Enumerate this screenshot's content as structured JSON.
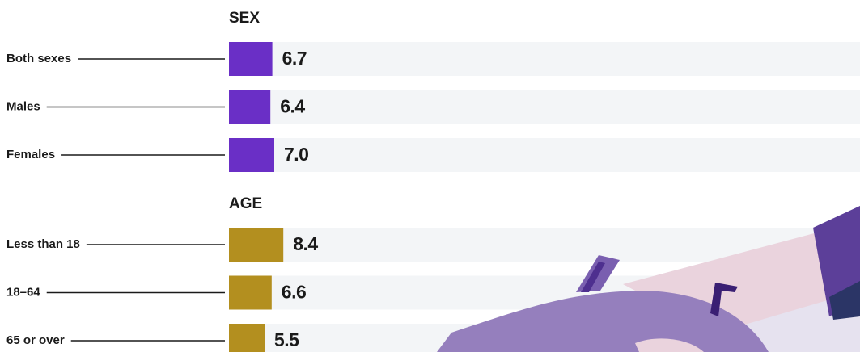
{
  "chart_data": {
    "type": "bar",
    "groups": [
      {
        "name": "SEX",
        "color": "#6a2fc6",
        "categories": [
          "Both sexes",
          "Males",
          "Females"
        ],
        "values": [
          6.7,
          6.4,
          7.0
        ],
        "value_labels": [
          "6.7",
          "6.4",
          "7.0"
        ]
      },
      {
        "name": "AGE",
        "color": "#b38f1f",
        "categories": [
          "Less than 18",
          "18–64",
          "65 or over"
        ],
        "values": [
          8.4,
          6.6,
          5.5
        ],
        "value_labels": [
          "8.4",
          "6.6",
          "5.5"
        ]
      }
    ]
  }
}
